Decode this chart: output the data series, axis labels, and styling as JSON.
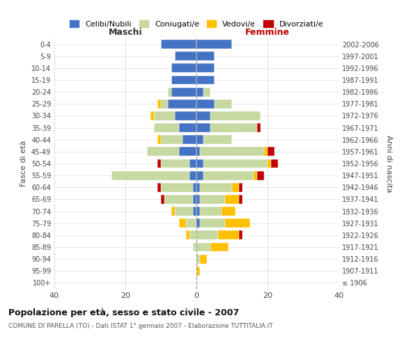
{
  "age_groups": [
    "100+",
    "95-99",
    "90-94",
    "85-89",
    "80-84",
    "75-79",
    "70-74",
    "65-69",
    "60-64",
    "55-59",
    "50-54",
    "45-49",
    "40-44",
    "35-39",
    "30-34",
    "25-29",
    "20-24",
    "15-19",
    "10-14",
    "5-9",
    "0-4"
  ],
  "birth_years": [
    "≤ 1906",
    "1907-1911",
    "1912-1916",
    "1917-1921",
    "1922-1926",
    "1927-1931",
    "1932-1936",
    "1937-1941",
    "1942-1946",
    "1947-1951",
    "1952-1956",
    "1957-1961",
    "1962-1966",
    "1967-1971",
    "1972-1976",
    "1977-1981",
    "1982-1986",
    "1987-1991",
    "1992-1996",
    "1997-2001",
    "2002-2006"
  ],
  "maschi": {
    "celibi": [
      0,
      0,
      0,
      0,
      0,
      0,
      1,
      1,
      1,
      2,
      2,
      5,
      4,
      5,
      6,
      8,
      7,
      7,
      7,
      6,
      10
    ],
    "coniugati": [
      0,
      0,
      0,
      1,
      2,
      3,
      5,
      8,
      9,
      22,
      8,
      9,
      6,
      7,
      6,
      2,
      1,
      0,
      0,
      0,
      0
    ],
    "vedovi": [
      0,
      0,
      0,
      0,
      1,
      2,
      1,
      0,
      0,
      0,
      0,
      0,
      1,
      0,
      1,
      1,
      0,
      0,
      0,
      0,
      0
    ],
    "divorziati": [
      0,
      0,
      0,
      0,
      0,
      0,
      0,
      1,
      1,
      0,
      1,
      0,
      0,
      0,
      0,
      0,
      0,
      0,
      0,
      0,
      0
    ]
  },
  "femmine": {
    "celibi": [
      0,
      0,
      0,
      0,
      0,
      1,
      1,
      1,
      1,
      2,
      2,
      1,
      2,
      4,
      4,
      5,
      2,
      5,
      5,
      5,
      10
    ],
    "coniugati": [
      0,
      0,
      1,
      4,
      6,
      7,
      6,
      7,
      9,
      14,
      18,
      18,
      8,
      13,
      14,
      5,
      2,
      0,
      0,
      0,
      0
    ],
    "vedovi": [
      0,
      1,
      2,
      5,
      6,
      7,
      4,
      4,
      2,
      1,
      1,
      1,
      0,
      0,
      0,
      0,
      0,
      0,
      0,
      0,
      0
    ],
    "divorziati": [
      0,
      0,
      0,
      0,
      1,
      0,
      0,
      1,
      1,
      2,
      2,
      2,
      0,
      1,
      0,
      0,
      0,
      0,
      0,
      0,
      0
    ]
  },
  "colors": {
    "celibi": "#4472c4",
    "coniugati": "#c5d9a0",
    "vedovi": "#ffc000",
    "divorziati": "#c00000"
  },
  "legend_labels": [
    "Celibi/Nubili",
    "Coniugati/e",
    "Vedovi/e",
    "Divorziati/e"
  ],
  "xlim": 40,
  "title": "Popolazione per età, sesso e stato civile - 2007",
  "subtitle": "COMUNE DI PARELLA (TO) - Dati ISTAT 1° gennaio 2007 - Elaborazione TUTTITALIA.IT",
  "ylabel_left": "Fasce di età",
  "ylabel_right": "Anni di nascita",
  "xlabel_left": "Maschi",
  "xlabel_right": "Femmine"
}
